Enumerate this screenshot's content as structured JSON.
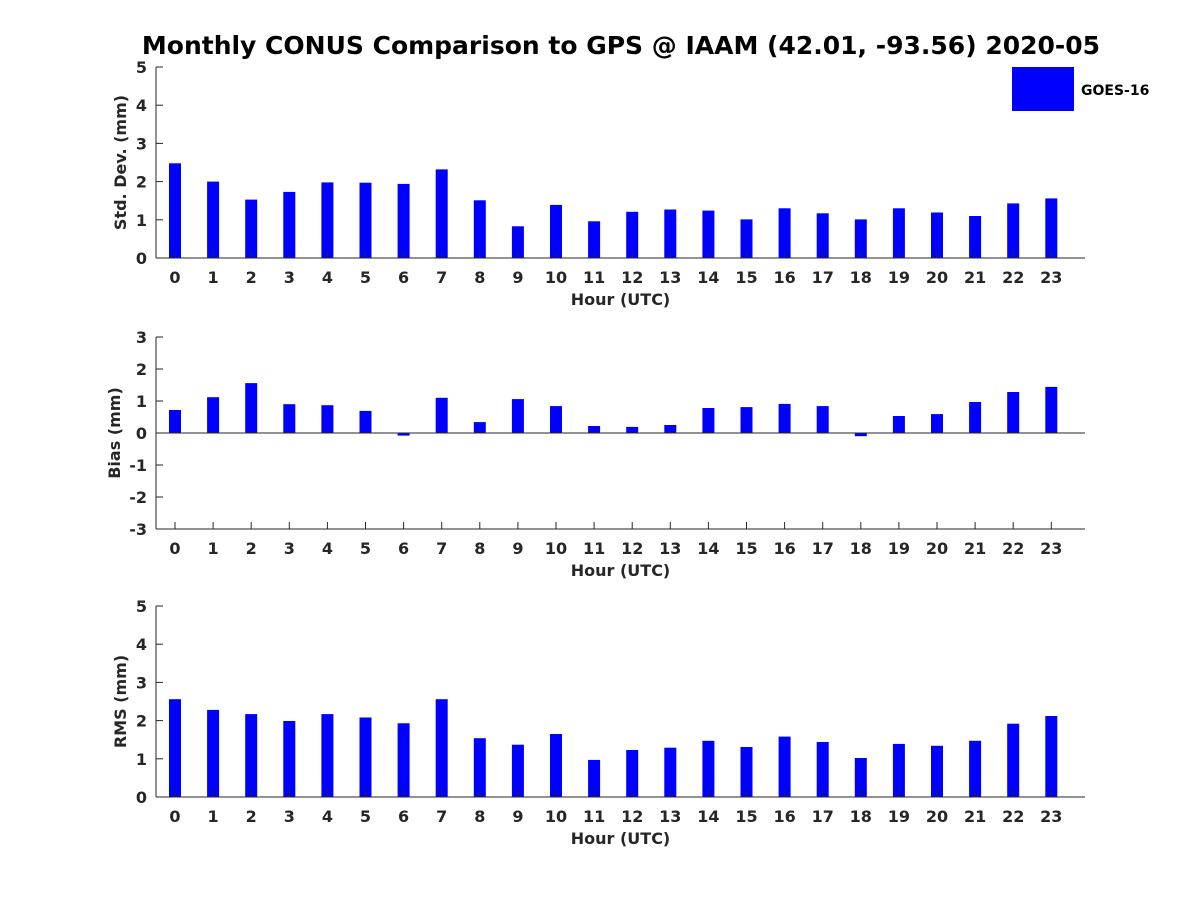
{
  "colors": {
    "bar": "#0000ff",
    "axis": "#262626",
    "title": "#000000"
  },
  "chart_data": {
    "title": "Monthly CONUS Comparison to GPS @ IAAM (42.01, -93.56) 2020-05",
    "legend": {
      "label": "GOES-16",
      "placement": "top-right"
    },
    "subplots": [
      {
        "type": "bar",
        "xlabel": "Hour (UTC)",
        "ylabel": "Std. Dev. (mm)",
        "ylim": [
          0,
          5
        ],
        "yticks": [
          0,
          1,
          2,
          3,
          4,
          5
        ],
        "categories": [
          0,
          1,
          2,
          3,
          4,
          5,
          6,
          7,
          8,
          9,
          10,
          11,
          12,
          13,
          14,
          15,
          16,
          17,
          18,
          19,
          20,
          21,
          22,
          23
        ],
        "values": [
          2.48,
          2.0,
          1.53,
          1.73,
          1.98,
          1.97,
          1.94,
          2.32,
          1.51,
          0.83,
          1.39,
          0.96,
          1.21,
          1.27,
          1.24,
          1.01,
          1.3,
          1.17,
          1.01,
          1.3,
          1.19,
          1.1,
          1.43,
          1.56
        ]
      },
      {
        "type": "bar",
        "xlabel": "Hour (UTC)",
        "ylabel": "Bias (mm)",
        "ylim": [
          -3,
          3
        ],
        "yticks": [
          -3,
          -2,
          -1,
          0,
          1,
          2,
          3
        ],
        "categories": [
          0,
          1,
          2,
          3,
          4,
          5,
          6,
          7,
          8,
          9,
          10,
          11,
          12,
          13,
          14,
          15,
          16,
          17,
          18,
          19,
          20,
          21,
          22,
          23
        ],
        "values": [
          0.72,
          1.12,
          1.56,
          0.9,
          0.87,
          0.69,
          -0.08,
          1.1,
          0.34,
          1.06,
          0.84,
          0.22,
          0.19,
          0.25,
          0.78,
          0.81,
          0.91,
          0.84,
          -0.1,
          0.53,
          0.59,
          0.97,
          1.28,
          1.44
        ]
      },
      {
        "type": "bar",
        "xlabel": "Hour (UTC)",
        "ylabel": "RMS (mm)",
        "ylim": [
          0,
          5
        ],
        "yticks": [
          0,
          1,
          2,
          3,
          4,
          5
        ],
        "categories": [
          0,
          1,
          2,
          3,
          4,
          5,
          6,
          7,
          8,
          9,
          10,
          11,
          12,
          13,
          14,
          15,
          16,
          17,
          18,
          19,
          20,
          21,
          22,
          23
        ],
        "values": [
          2.56,
          2.28,
          2.17,
          1.99,
          2.17,
          2.08,
          1.93,
          2.56,
          1.54,
          1.37,
          1.65,
          0.97,
          1.23,
          1.29,
          1.47,
          1.31,
          1.58,
          1.44,
          1.02,
          1.39,
          1.34,
          1.47,
          1.92,
          2.12
        ]
      }
    ]
  }
}
